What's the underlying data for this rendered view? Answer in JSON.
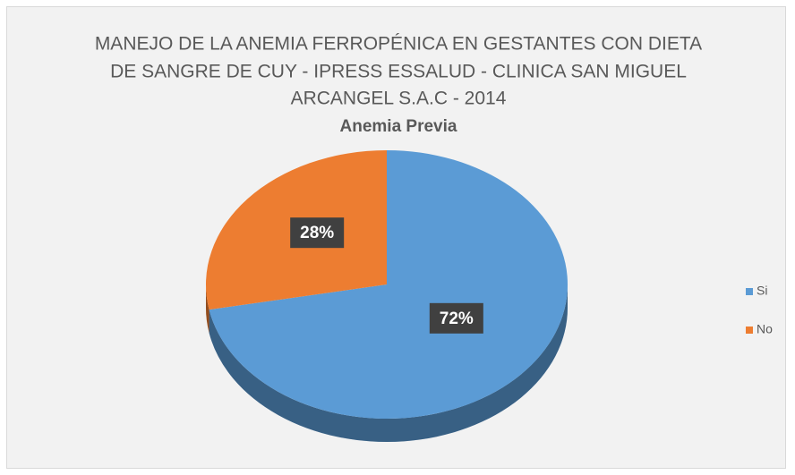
{
  "chart_data": {
    "type": "pie",
    "title": [
      "MANEJO DE LA ANEMIA FERROPÉNICA EN GESTANTES CON DIETA",
      "DE SANGRE DE CUY  - IPRESS ESSALUD - CLINICA SAN MIGUEL",
      "ARCANGEL S.A.C - 2014"
    ],
    "subtitle": "Anemia Previa",
    "categories": [
      "Si",
      "No"
    ],
    "values": [
      72,
      28
    ],
    "value_labels": [
      "72%",
      "28%"
    ],
    "colors": [
      "#5b9bd5",
      "#ed7d31"
    ],
    "legend": "right"
  }
}
